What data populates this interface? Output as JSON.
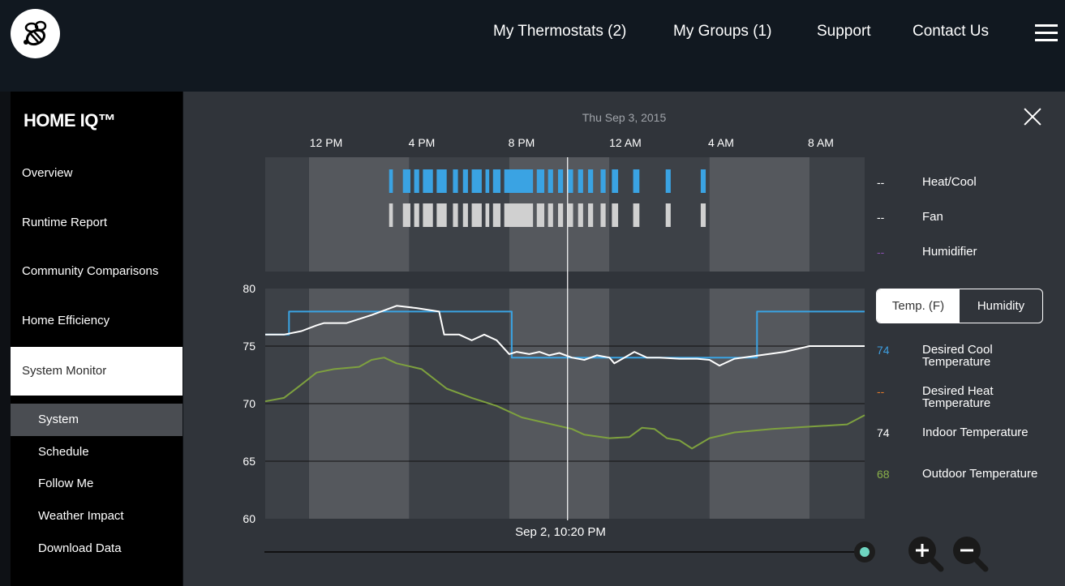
{
  "header": {
    "nav": [
      {
        "label": "My Thermostats  (2)"
      },
      {
        "label": "My Groups  (1)"
      },
      {
        "label": "Support"
      },
      {
        "label": "Contact Us"
      }
    ]
  },
  "sidebar": {
    "brand": "HOME IQ™",
    "items": [
      {
        "label": "Overview"
      },
      {
        "label": "Runtime Report"
      },
      {
        "label": "Community Comparisons"
      },
      {
        "label": "Home Efficiency"
      },
      {
        "label": "System Monitor",
        "active": true
      }
    ],
    "subitems": [
      {
        "label": "System",
        "active": true
      },
      {
        "label": "Schedule"
      },
      {
        "label": "Follow Me"
      },
      {
        "label": "Weather Impact"
      },
      {
        "label": "Download Data"
      }
    ]
  },
  "monitor": {
    "date_title": "Thu Sep 3, 2015",
    "time_labels": [
      "12 PM",
      "4 PM",
      "8 PM",
      "12 AM",
      "4 AM",
      "8 AM"
    ],
    "y_ticks": [
      "80",
      "75",
      "70",
      "65",
      "60"
    ],
    "cursor_label": "Sep 2, 10:20 PM",
    "toggle": {
      "temp": "Temp. (F)",
      "humidity": "Humidity",
      "selected": "temp"
    },
    "equipment_legend": [
      {
        "dash": "--",
        "label": "Heat/Cool",
        "color": "#ffffff"
      },
      {
        "dash": "--",
        "label": "Fan",
        "color": "#ffffff"
      },
      {
        "dash": "--",
        "label": "Humidifier",
        "color": "#8a4fb0"
      }
    ],
    "temp_legend": [
      {
        "value": "74",
        "label": "Desired Cool\nTemperature",
        "color": "#3d9ee0"
      },
      {
        "value": "--",
        "label": "Desired Heat\nTemperature",
        "color": "#e07a2a"
      },
      {
        "value": "74",
        "label": "Indoor Temperature",
        "color": "#ffffff"
      },
      {
        "value": "68",
        "label": "Outdoor Temperature",
        "color": "#8ab04a"
      }
    ],
    "colors": {
      "cool": "#3aa3e3",
      "fan": "#d0d0d0",
      "indoor": "#ffffff",
      "outdoor": "#7ea13f"
    }
  },
  "chart_data": {
    "type": "line",
    "title": "Thu Sep 3, 2015",
    "x_unit": "hours",
    "x_range": [
      10.25,
      34.2
    ],
    "ylim": [
      60,
      80
    ],
    "yticks": [
      60,
      65,
      70,
      75,
      80
    ],
    "cursor_x": 22.33,
    "series": [
      {
        "name": "Desired Cool Temperature",
        "style": "solid-then-dashed",
        "x": [
          10.25,
          11.2,
          11.2,
          20.1,
          20.1,
          29.9,
          29.9,
          34.2
        ],
        "y": [
          76.0,
          76.0,
          78.0,
          78.0,
          74.0,
          74.0,
          78.0,
          78.0
        ]
      },
      {
        "name": "Indoor Temperature",
        "x": [
          10.25,
          11.0,
          11.7,
          12.3,
          12.6,
          13.5,
          14.5,
          15.5,
          16.3,
          17.2,
          17.4,
          18.0,
          18.5,
          19.0,
          19.5,
          20.0,
          20.3,
          20.8,
          21.2,
          21.6,
          22.0,
          22.5,
          23.0,
          23.5,
          24.0,
          24.2,
          24.6,
          25.0,
          25.5,
          26.0,
          26.8,
          27.5,
          28.0,
          28.4,
          29.0,
          30.0,
          31.0,
          32.0,
          33.0,
          34.2
        ],
        "y": [
          76.0,
          76.0,
          76.3,
          76.8,
          77.0,
          77.0,
          77.7,
          78.5,
          78.3,
          78.0,
          76.0,
          76.0,
          75.5,
          76.0,
          75.5,
          74.3,
          74.5,
          74.3,
          74.5,
          74.2,
          74.4,
          74.0,
          73.8,
          74.2,
          74.0,
          73.5,
          74.0,
          74.5,
          74.0,
          74.0,
          73.9,
          73.9,
          73.8,
          73.3,
          73.9,
          74.2,
          74.5,
          75.0,
          75.0,
          75.0
        ]
      },
      {
        "name": "Outdoor Temperature",
        "x": [
          10.25,
          11.0,
          11.6,
          12.3,
          13.0,
          14.0,
          14.5,
          15.0,
          15.5,
          16.5,
          17.5,
          18.5,
          19.5,
          20.5,
          21.5,
          22.5,
          23.0,
          24.0,
          24.8,
          25.3,
          25.8,
          26.3,
          26.8,
          27.3,
          28.0,
          29.0,
          30.5,
          32.0,
          33.5,
          34.2
        ],
        "y": [
          70.2,
          70.5,
          71.5,
          72.7,
          73.0,
          73.2,
          73.8,
          74.0,
          73.5,
          73.0,
          71.3,
          70.5,
          69.8,
          68.8,
          68.3,
          67.8,
          67.3,
          67.0,
          67.1,
          67.9,
          67.8,
          67.0,
          66.8,
          66.1,
          67.0,
          67.5,
          67.8,
          68.0,
          68.2,
          69.0
        ]
      }
    ],
    "equipment": {
      "x_unit": "hours",
      "heat_cool_on": [
        [
          15.2,
          15.35
        ],
        [
          15.75,
          16.05
        ],
        [
          16.2,
          16.4
        ],
        [
          16.55,
          16.95
        ],
        [
          17.1,
          17.5
        ],
        [
          17.75,
          17.95
        ],
        [
          18.15,
          18.35
        ],
        [
          18.5,
          18.9
        ],
        [
          19.05,
          19.2
        ],
        [
          19.35,
          19.65
        ],
        [
          19.8,
          20.95
        ],
        [
          21.1,
          21.4
        ],
        [
          21.55,
          21.75
        ],
        [
          21.95,
          22.15
        ],
        [
          22.35,
          22.55
        ],
        [
          22.75,
          22.95
        ],
        [
          23.15,
          23.35
        ],
        [
          23.65,
          23.85
        ],
        [
          24.1,
          24.35
        ],
        [
          24.95,
          25.2
        ],
        [
          26.25,
          26.45
        ],
        [
          27.65,
          27.85
        ]
      ],
      "fan_on": [
        [
          15.2,
          15.35
        ],
        [
          15.75,
          16.05
        ],
        [
          16.2,
          16.4
        ],
        [
          16.55,
          16.95
        ],
        [
          17.1,
          17.5
        ],
        [
          17.75,
          17.95
        ],
        [
          18.15,
          18.35
        ],
        [
          18.5,
          18.9
        ],
        [
          19.05,
          19.2
        ],
        [
          19.35,
          19.65
        ],
        [
          19.8,
          20.95
        ],
        [
          21.1,
          21.4
        ],
        [
          21.55,
          21.75
        ],
        [
          21.95,
          22.15
        ],
        [
          22.35,
          22.55
        ],
        [
          22.75,
          22.95
        ],
        [
          23.15,
          23.35
        ],
        [
          23.65,
          23.85
        ],
        [
          24.1,
          24.35
        ],
        [
          24.95,
          25.2
        ],
        [
          26.25,
          26.45
        ],
        [
          27.65,
          27.85
        ]
      ]
    }
  }
}
